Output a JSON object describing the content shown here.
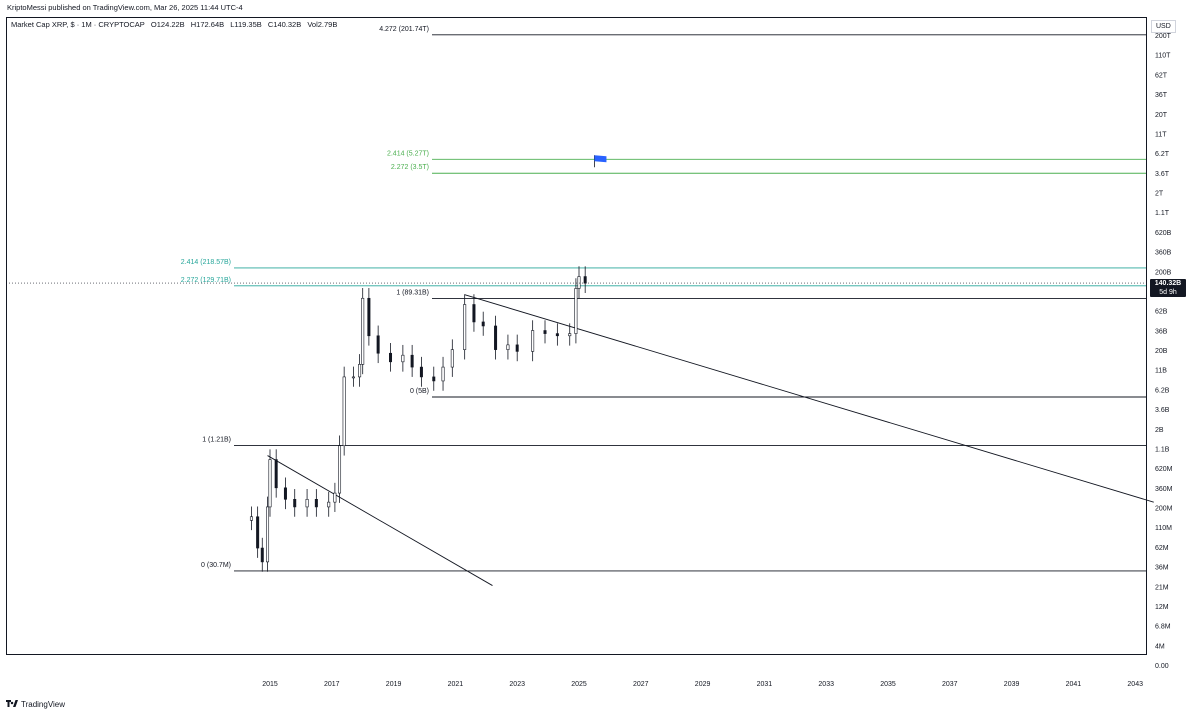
{
  "header": {
    "caption": "KriptoMessi published on TradingView.com, Mar 26, 2025 11:44 UTC-4"
  },
  "legend": {
    "symbol": "Market Cap XRP, $ · 1M · CRYPTOCAP",
    "open": "O124.22B",
    "high": "H172.64B",
    "low": "L119.35B",
    "close": "C140.32B",
    "vol": "Vol2.79B"
  },
  "price_scale": {
    "currency": "USD",
    "current_value": "140.32B",
    "current_time": "5d 9h"
  },
  "footer": {
    "brand": "TradingView"
  },
  "colors": {
    "candle": "#131722",
    "fib_green": "#4caf50",
    "fib_teal": "#26a69a",
    "line": "#131722",
    "flag": "#2962ff"
  },
  "chart_data": {
    "type": "candlestick",
    "y_scale": "log",
    "x_axis_ticks": [
      "2015",
      "2017",
      "2019",
      "2021",
      "2023",
      "2025",
      "2027",
      "2029",
      "2031",
      "2033",
      "2035",
      "2037",
      "2039",
      "2041",
      "2043"
    ],
    "y_axis_ticks": [
      "200T",
      "110T",
      "62T",
      "36T",
      "20T",
      "11T",
      "6.2T",
      "3.6T",
      "2T",
      "1.1T",
      "620B",
      "360B",
      "200B",
      "110B",
      "62B",
      "36B",
      "20B",
      "11B",
      "6.2B",
      "3.6B",
      "2B",
      "1.1B",
      "620M",
      "360M",
      "200M",
      "110M",
      "62M",
      "36M",
      "21M",
      "12M",
      "6.8M",
      "4M",
      "0.00"
    ],
    "fib_levels": [
      {
        "label": "4.272 (201.74T)",
        "value_usd": 201740000000000,
        "group": "cycle3"
      },
      {
        "label": "2.414 (5.27T)",
        "value_usd": 5270000000000,
        "group": "cycle3",
        "color": "green"
      },
      {
        "label": "2.272 (3.5T)",
        "value_usd": 3500000000000,
        "group": "cycle3",
        "color": "green"
      },
      {
        "label": "1 (89.31B)",
        "value_usd": 89310000000,
        "group": "cycle3"
      },
      {
        "label": "0 (5B)",
        "value_usd": 5000000000,
        "group": "cycle3"
      },
      {
        "label": "2.414 (218.57B)",
        "value_usd": 218570000000,
        "group": "cycle2",
        "color": "teal"
      },
      {
        "label": "2.272 (129.71B)",
        "value_usd": 129710000000,
        "group": "cycle2",
        "color": "teal"
      },
      {
        "label": "1 (1.21B)",
        "value_usd": 1210000000,
        "group": "cycle2"
      },
      {
        "label": "0 (30.7M)",
        "value_usd": 30700000,
        "group": "cycle2"
      }
    ],
    "trendlines": [
      {
        "from": {
          "x": 2014.92,
          "y_usd": 900000000
        },
        "to": {
          "x": 2022.2,
          "y_usd": 20000000
        }
      },
      {
        "from": {
          "x": 2021.3,
          "y_usd": 100000000000
        },
        "to": {
          "x": 2043.6,
          "y_usd": 230000000
        }
      }
    ],
    "monthly_close_usd": [
      {
        "x": 2014.4,
        "y": 150000000
      },
      {
        "x": 2014.6,
        "y": 60000000
      },
      {
        "x": 2014.75,
        "y": 40000000
      },
      {
        "x": 2014.92,
        "y": 200000000
      },
      {
        "x": 2015.0,
        "y": 800000000
      },
      {
        "x": 2015.2,
        "y": 350000000
      },
      {
        "x": 2015.5,
        "y": 250000000
      },
      {
        "x": 2015.8,
        "y": 200000000
      },
      {
        "x": 2016.2,
        "y": 250000000
      },
      {
        "x": 2016.5,
        "y": 200000000
      },
      {
        "x": 2016.9,
        "y": 230000000
      },
      {
        "x": 2017.1,
        "y": 300000000
      },
      {
        "x": 2017.25,
        "y": 1200000000
      },
      {
        "x": 2017.4,
        "y": 9000000000
      },
      {
        "x": 2017.7,
        "y": 9000000000
      },
      {
        "x": 2017.9,
        "y": 13000000000
      },
      {
        "x": 2018.0,
        "y": 90000000000
      },
      {
        "x": 2018.2,
        "y": 30000000000
      },
      {
        "x": 2018.5,
        "y": 18000000000
      },
      {
        "x": 2018.9,
        "y": 14000000000
      },
      {
        "x": 2019.3,
        "y": 17000000000
      },
      {
        "x": 2019.6,
        "y": 12000000000
      },
      {
        "x": 2019.9,
        "y": 9000000000
      },
      {
        "x": 2020.3,
        "y": 8000000000
      },
      {
        "x": 2020.6,
        "y": 12000000000
      },
      {
        "x": 2020.9,
        "y": 20000000000
      },
      {
        "x": 2021.3,
        "y": 75000000000
      },
      {
        "x": 2021.6,
        "y": 45000000000
      },
      {
        "x": 2021.9,
        "y": 40000000000
      },
      {
        "x": 2022.3,
        "y": 20000000000
      },
      {
        "x": 2022.7,
        "y": 23000000000
      },
      {
        "x": 2023.0,
        "y": 19000000000
      },
      {
        "x": 2023.5,
        "y": 35000000000
      },
      {
        "x": 2023.9,
        "y": 32000000000
      },
      {
        "x": 2024.3,
        "y": 30000000000
      },
      {
        "x": 2024.7,
        "y": 32000000000
      },
      {
        "x": 2024.9,
        "y": 120000000000
      },
      {
        "x": 2025.0,
        "y": 170000000000
      },
      {
        "x": 2025.2,
        "y": 140000000000
      }
    ],
    "flag_marker": {
      "x": 2025.5,
      "y_usd": 5270000000000
    }
  }
}
